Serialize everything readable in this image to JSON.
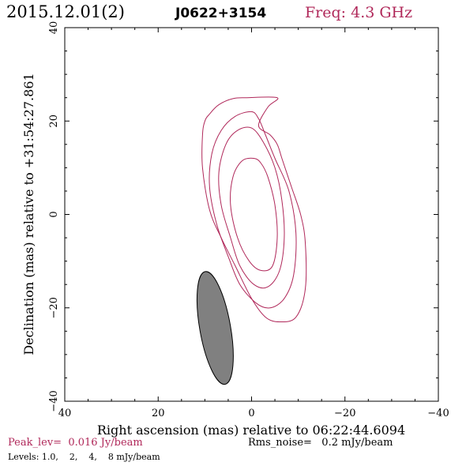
{
  "header": {
    "date": "2015.12.01(2)",
    "source": "J0622+3154",
    "freq": "Freq: 4.3 GHz"
  },
  "footer": {
    "peak": "Peak_lev=  0.016 Jy/beam",
    "rms": "Rms_noise=   0.2 mJy/beam",
    "levels": "Levels: 1.0,    2,    4,    8 mJy/beam"
  },
  "colors": {
    "contour": "#b0285a",
    "accent_text": "#b0285a",
    "beam_fill": "#808080",
    "axis": "#000000"
  },
  "chart_data": {
    "type": "contour",
    "xlabel": "Right ascension (mas) relative to 06:22:44.6094",
    "ylabel": "Declination (mas) relative to +31:54:27.861",
    "xlim": [
      40,
      -40
    ],
    "ylim": [
      -40,
      40
    ],
    "xticks": [
      40,
      20,
      0,
      -20,
      -40
    ],
    "yticks": [
      -40,
      -20,
      0,
      20,
      40
    ],
    "xtick_labels": [
      "40",
      "20",
      "0",
      "−20",
      "−40"
    ],
    "ytick_labels": [
      "−40",
      "−20",
      "0",
      "20",
      "40"
    ],
    "levels_mJy": [
      1.0,
      2,
      4,
      8
    ],
    "contours": [
      {
        "level": 1.0,
        "points": [
          [
            -5.5,
            25
          ],
          [
            -3.5,
            23
          ],
          [
            -1.5,
            19
          ],
          [
            -4,
            17
          ],
          [
            -5.5,
            15
          ],
          [
            -6.5,
            12
          ],
          [
            -8.5,
            6
          ],
          [
            -10.5,
            0
          ],
          [
            -11.5,
            -6
          ],
          [
            -11.5,
            -16
          ],
          [
            -9.5,
            -22
          ],
          [
            -6,
            -23
          ],
          [
            -3,
            -22
          ],
          [
            0,
            -18
          ],
          [
            3.5,
            -11
          ],
          [
            6.5,
            -5
          ],
          [
            9,
            1
          ],
          [
            10.5,
            10
          ],
          [
            10.5,
            17
          ],
          [
            10,
            20
          ],
          [
            9,
            21.5
          ],
          [
            7,
            23.5
          ],
          [
            4,
            24.8
          ],
          [
            1,
            25
          ]
        ]
      },
      {
        "level": 2,
        "points": [
          [
            0,
            22
          ],
          [
            3.5,
            21
          ],
          [
            6.5,
            18
          ],
          [
            8.5,
            13
          ],
          [
            9,
            6
          ],
          [
            7.5,
            -2
          ],
          [
            5,
            -9
          ],
          [
            2.5,
            -15
          ],
          [
            -1,
            -19
          ],
          [
            -4,
            -20
          ],
          [
            -7,
            -18
          ],
          [
            -9,
            -13
          ],
          [
            -9.5,
            -4
          ],
          [
            -8,
            5
          ],
          [
            -5,
            12
          ],
          [
            -3,
            17
          ],
          [
            -1.5,
            20.5
          ]
        ]
      },
      {
        "level": 4,
        "points": [
          [
            0,
            18.5
          ],
          [
            3,
            18
          ],
          [
            5.5,
            15
          ],
          [
            7,
            9
          ],
          [
            6.5,
            2
          ],
          [
            4.5,
            -5
          ],
          [
            2.5,
            -11
          ],
          [
            -0.5,
            -15
          ],
          [
            -3.5,
            -15.5
          ],
          [
            -6,
            -12
          ],
          [
            -7,
            -5
          ],
          [
            -6.5,
            3
          ],
          [
            -5,
            10
          ],
          [
            -2.5,
            15.5
          ]
        ]
      },
      {
        "level": 8,
        "points": [
          [
            -0.5,
            12
          ],
          [
            2,
            11.5
          ],
          [
            4,
            8
          ],
          [
            4.5,
            2
          ],
          [
            3,
            -5
          ],
          [
            0.5,
            -10
          ],
          [
            -2,
            -12
          ],
          [
            -4.5,
            -11
          ],
          [
            -5.5,
            -5
          ],
          [
            -5,
            2
          ],
          [
            -3.5,
            8
          ],
          [
            -2,
            11
          ]
        ]
      }
    ],
    "beam": {
      "center": [
        7.8,
        -24.3
      ],
      "major": 24.5,
      "minor": 6.6,
      "pa_deg": -10
    }
  }
}
